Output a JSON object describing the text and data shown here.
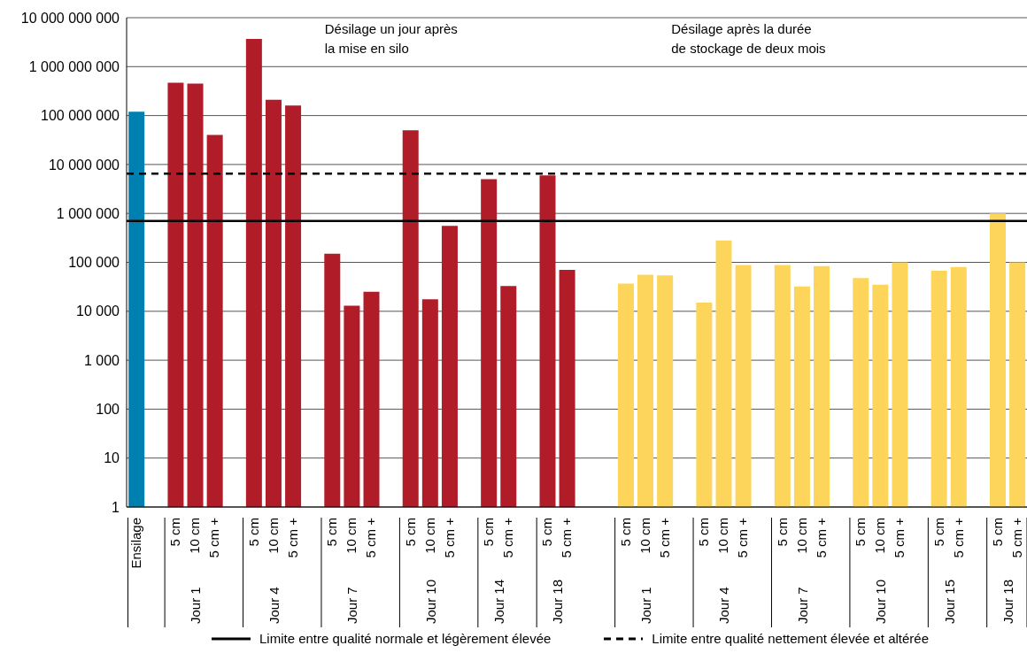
{
  "chart_data": {
    "type": "bar",
    "log": "y",
    "categories": [
      "Ensilage",
      null,
      "5 cm",
      "10 cm",
      "5 cm +",
      null,
      "5 cm",
      "10 cm",
      "5 cm +",
      null,
      "5 cm",
      "10 cm",
      "5 cm +",
      null,
      "5 cm",
      "10 cm",
      "5 cm +",
      null,
      "5 cm",
      "5 cm +",
      null,
      "5 cm",
      "5 cm +",
      null,
      null,
      "5 cm",
      "10 cm",
      "5 cm +",
      null,
      "5 cm",
      "10 cm",
      "5 cm +",
      null,
      "5 cm",
      "10 cm",
      "5 cm +",
      null,
      "5 cm",
      "10 cm",
      "5 cm +",
      null,
      "5 cm",
      "5 cm +",
      null,
      "5 cm",
      "5 cm +"
    ],
    "values": [
      120000000,
      null,
      470000000,
      450000000,
      40000000,
      null,
      3700000000,
      210000000,
      160000000,
      null,
      150000,
      13000,
      25000,
      null,
      50000000,
      17500,
      560000,
      null,
      5000000,
      33000,
      null,
      6000000,
      70000,
      null,
      null,
      37000,
      56000,
      54000,
      null,
      15000,
      280000,
      88000,
      null,
      88000,
      32000,
      84000,
      null,
      48000,
      35000,
      100000,
      null,
      67000,
      80000,
      null,
      1000000,
      100000
    ],
    "colors": [
      "#0080b0",
      null,
      "#b01c28",
      "#b01c28",
      "#b01c28",
      null,
      "#b01c28",
      "#b01c28",
      "#b01c28",
      null,
      "#b01c28",
      "#b01c28",
      "#b01c28",
      null,
      "#b01c28",
      "#b01c28",
      "#b01c28",
      null,
      "#b01c28",
      "#b01c28",
      null,
      "#b01c28",
      "#b01c28",
      null,
      null,
      "#fdd55a",
      "#fdd55a",
      "#fdd55a",
      null,
      "#fdd55a",
      "#fdd55a",
      "#fdd55a",
      null,
      "#fdd55a",
      "#fdd55a",
      "#fdd55a",
      null,
      "#fdd55a",
      "#fdd55a",
      "#fdd55a",
      null,
      "#fdd55a",
      "#fdd55a",
      null,
      "#fdd55a",
      "#fdd55a"
    ],
    "ylim": [
      1,
      10000000000
    ],
    "yticks": [
      1,
      10,
      100,
      {
        "value": 1000,
        "label": "1 000"
      },
      {
        "value": 10000,
        "label": "10 000"
      },
      {
        "value": 100000,
        "label": "100 000"
      },
      {
        "value": 1000000,
        "label": "1 000 000"
      },
      {
        "value": 10000000,
        "label": "10 000 000"
      },
      {
        "value": 100000000,
        "label": "100 000 000"
      },
      {
        "value": 1000000000,
        "label": "1 000 000 000"
      },
      {
        "value": 10000000000,
        "label": "10 000 000 000"
      }
    ],
    "grid": "y",
    "legend": "bottom",
    "ref_lines": [
      {
        "axis": "y",
        "value": 700000,
        "label": "Limite entre qualité normale et légèrement élevée",
        "color": "#000000",
        "line_style": "solid"
      },
      {
        "axis": "y",
        "value": 6500000,
        "label": "Limite entre qualité nettement élevée et altérée",
        "color": "#000000",
        "line_style": "dashed"
      }
    ],
    "annotations": [
      "Désilage un jour après\nla mise en silo",
      "Désilage après la durée\nde stockage de deux mois",
      "Jour 1",
      "Jour 4",
      "Jour 7",
      "Jour 10",
      "Jour 14",
      "Jour 18",
      "Jour 1",
      "Jour 4",
      "Jour 7",
      "Jour 10",
      "Jour 15",
      "Jour 18"
    ]
  }
}
